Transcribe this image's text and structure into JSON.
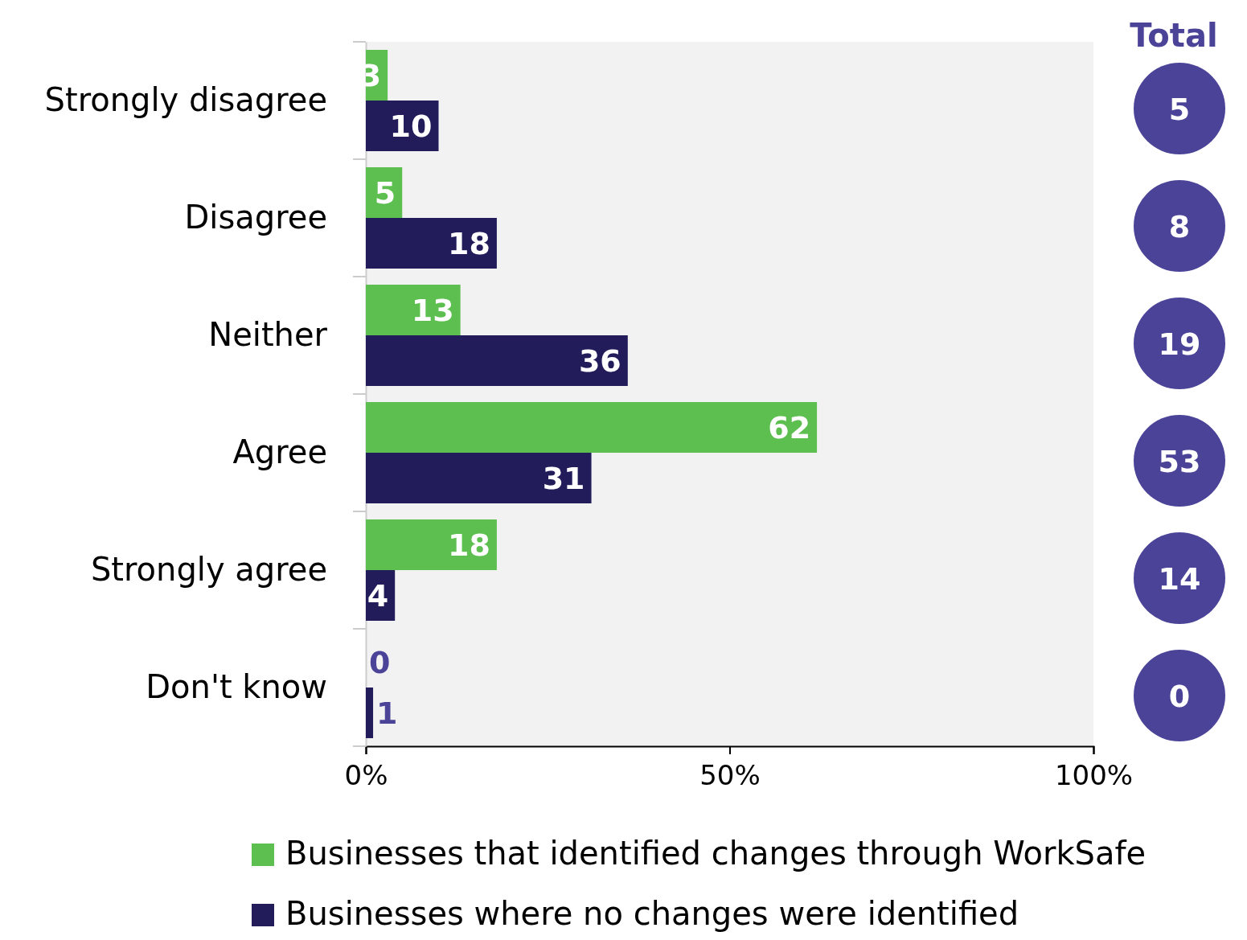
{
  "chart_data": {
    "type": "bar",
    "orientation": "horizontal",
    "categories": [
      "Strongly disagree",
      "Disagree",
      "Neither",
      "Agree",
      "Strongly agree",
      "Don't know"
    ],
    "series": [
      {
        "name": "Businesses that identified changes through WorkSafe",
        "color": "#5cbf4f",
        "values": [
          3,
          5,
          13,
          62,
          18,
          0
        ]
      },
      {
        "name": "Businesses where no changes were identified",
        "color": "#231c5a",
        "values": [
          10,
          18,
          36,
          31,
          4,
          1
        ]
      }
    ],
    "xlim": [
      0,
      100
    ],
    "xticks": [
      {
        "value": 0,
        "label": "0%"
      },
      {
        "value": 50,
        "label": "50%"
      },
      {
        "value": 100,
        "label": "100%"
      }
    ],
    "data_labels": true,
    "legend": "bottom",
    "grid": false,
    "annotations": [
      "Total",
      "5",
      "8",
      "19",
      "53",
      "14",
      "0"
    ]
  }
}
